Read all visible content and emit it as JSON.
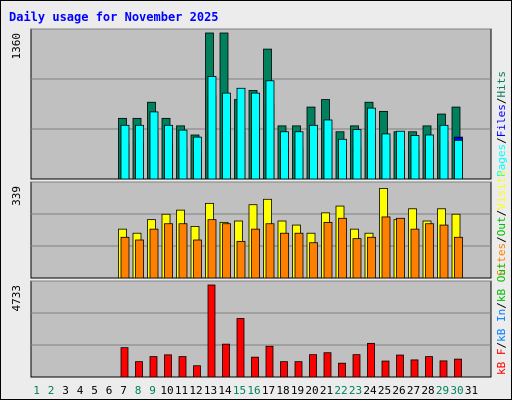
{
  "title": "Daily usage for November 2025",
  "colors": {
    "hits": "#00805c",
    "files": "#0000ff",
    "pages": "#00ffff",
    "visits": "#ffff00",
    "sites": "#ff8000",
    "kbin": "#0080ff",
    "kbout": "#00c000",
    "kbf": "#ff0000",
    "title": "#0000ff",
    "panel": "#c0c0c0",
    "weekend_day": "#00805c",
    "weekday_day": "#000000"
  },
  "chart_data": [
    {
      "type": "bar",
      "title": "Daily usage for November 2025",
      "panel": "hits",
      "ymax_label": "1360",
      "ylim": [
        0,
        1360
      ],
      "legend": [
        "Pages",
        "Files",
        "Hits"
      ],
      "categories": [
        "1",
        "2",
        "3",
        "4",
        "5",
        "6",
        "7",
        "8",
        "9",
        "10",
        "11",
        "12",
        "13",
        "14",
        "15",
        "16",
        "17",
        "18",
        "19",
        "20",
        "21",
        "22",
        "23",
        "24",
        "25",
        "26",
        "27",
        "28",
        "29",
        "30",
        "31"
      ],
      "series": [
        {
          "name": "Hits",
          "values": [
            0,
            0,
            0,
            0,
            0,
            0,
            565,
            565,
            715,
            565,
            495,
            410,
            1360,
            1360,
            740,
            825,
            1210,
            495,
            495,
            670,
            740,
            440,
            495,
            715,
            630,
            440,
            440,
            495,
            605,
            670,
            0
          ]
        },
        {
          "name": "Files",
          "values": [
            0,
            0,
            0,
            0,
            0,
            0,
            330,
            330,
            440,
            330,
            290,
            240,
            770,
            770,
            440,
            480,
            700,
            290,
            290,
            390,
            440,
            260,
            290,
            410,
            370,
            260,
            260,
            290,
            350,
            390,
            0
          ]
        },
        {
          "name": "Pages",
          "values": [
            0,
            0,
            0,
            0,
            0,
            0,
            500,
            500,
            625,
            500,
            455,
            390,
            955,
            800,
            845,
            800,
            915,
            440,
            440,
            500,
            550,
            370,
            460,
            660,
            420,
            445,
            405,
            410,
            500,
            360,
            0
          ]
        }
      ]
    },
    {
      "type": "bar",
      "panel": "visits",
      "ymax_label": "339",
      "ylim": [
        0,
        339
      ],
      "legend": [
        "Sites",
        "Out",
        "Visits"
      ],
      "categories": [
        "1",
        "2",
        "3",
        "4",
        "5",
        "6",
        "7",
        "8",
        "9",
        "10",
        "11",
        "12",
        "13",
        "14",
        "15",
        "16",
        "17",
        "18",
        "19",
        "20",
        "21",
        "22",
        "23",
        "24",
        "25",
        "26",
        "27",
        "28",
        "29",
        "30",
        "31"
      ],
      "series": [
        {
          "name": "Visits",
          "values": [
            0,
            0,
            0,
            0,
            0,
            0,
            180,
            165,
            215,
            235,
            250,
            190,
            275,
            205,
            210,
            270,
            290,
            210,
            195,
            165,
            240,
            265,
            180,
            165,
            330,
            215,
            255,
            210,
            255,
            235,
            0
          ]
        },
        {
          "name": "Sites",
          "values": [
            0,
            0,
            0,
            0,
            0,
            0,
            150,
            140,
            180,
            200,
            200,
            140,
            215,
            200,
            135,
            180,
            200,
            165,
            165,
            130,
            205,
            220,
            145,
            150,
            225,
            220,
            180,
            200,
            195,
            150,
            0
          ]
        }
      ]
    },
    {
      "type": "bar",
      "panel": "kbytes",
      "ymax_label": "4733",
      "ylim": [
        0,
        4733
      ],
      "legend": [
        "kB F",
        "kB In"
      ],
      "categories": [
        "1",
        "2",
        "3",
        "4",
        "5",
        "6",
        "7",
        "8",
        "9",
        "10",
        "11",
        "12",
        "13",
        "14",
        "15",
        "16",
        "17",
        "18",
        "19",
        "20",
        "21",
        "22",
        "23",
        "24",
        "25",
        "26",
        "27",
        "28",
        "29",
        "30",
        "31"
      ],
      "series": [
        {
          "name": "kB F",
          "values": [
            0,
            0,
            0,
            0,
            0,
            0,
            1510,
            790,
            1050,
            1140,
            1050,
            580,
            4733,
            1690,
            3010,
            1020,
            1580,
            790,
            790,
            1150,
            1250,
            710,
            1150,
            1730,
            820,
            1130,
            880,
            1050,
            830,
            920,
            0
          ]
        }
      ]
    }
  ]
}
